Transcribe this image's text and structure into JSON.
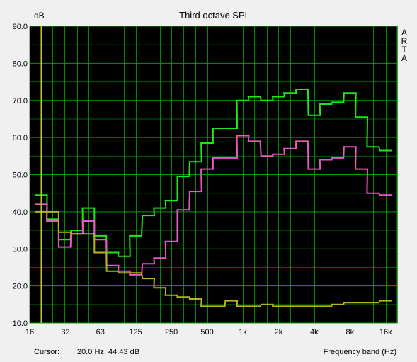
{
  "chart_data": {
    "type": "line",
    "step": true,
    "title": "Third octave SPL",
    "ylabel": "dB",
    "xlabel": "Frequency band (Hz)",
    "side_label": [
      "A",
      "R",
      "T",
      "A"
    ],
    "cursor_label": "Cursor:",
    "cursor_value": "20.0 Hz, 44.43 dB",
    "cursor_x": 20,
    "x_scale": "log",
    "xlim": [
      16,
      20000
    ],
    "ylim": [
      10,
      90
    ],
    "yticks": [
      {
        "value": 10,
        "label": "10.0"
      },
      {
        "value": 20,
        "label": "20.0"
      },
      {
        "value": 30,
        "label": "30.0"
      },
      {
        "value": 40,
        "label": "40.0"
      },
      {
        "value": 50,
        "label": "50.0"
      },
      {
        "value": 60,
        "label": "60.0"
      },
      {
        "value": 70,
        "label": "70.0"
      },
      {
        "value": 80,
        "label": "80.0"
      },
      {
        "value": 90,
        "label": "90.0"
      }
    ],
    "xticks": [
      {
        "value": 16,
        "label": "16"
      },
      {
        "value": 32,
        "label": "32"
      },
      {
        "value": 63,
        "label": "63"
      },
      {
        "value": 125,
        "label": "125"
      },
      {
        "value": 250,
        "label": "250"
      },
      {
        "value": 500,
        "label": "500"
      },
      {
        "value": 1000,
        "label": "1k"
      },
      {
        "value": 2000,
        "label": "2k"
      },
      {
        "value": 4000,
        "label": "4k"
      },
      {
        "value": 8000,
        "label": "8k"
      },
      {
        "value": 16000,
        "label": "16k"
      }
    ],
    "bands": [
      20,
      25,
      31.5,
      40,
      50,
      63,
      80,
      100,
      125,
      160,
      200,
      250,
      315,
      400,
      500,
      630,
      800,
      1000,
      1250,
      1600,
      2000,
      2500,
      3150,
      4000,
      5000,
      6300,
      8000,
      10000,
      12500,
      16000
    ],
    "series": [
      {
        "color": "#1ee61e",
        "values": [
          44.5,
          38,
          32.5,
          35,
          41,
          33.5,
          29,
          28,
          33.5,
          39,
          41,
          43,
          49.5,
          53.5,
          58.5,
          62.5,
          62.5,
          70,
          71,
          70,
          71,
          72,
          73,
          66,
          69,
          69.5,
          72,
          65.5,
          57.5,
          56.5
        ]
      },
      {
        "color": "#ee55c8",
        "values": [
          42,
          37.5,
          30.5,
          34,
          37.5,
          32.5,
          25.5,
          24,
          23,
          26,
          27.5,
          32,
          40.5,
          45.5,
          51.5,
          54.5,
          54.5,
          60.5,
          59,
          55,
          55.5,
          57,
          59,
          51.5,
          54,
          54.5,
          57.5,
          51.5,
          45,
          44.5
        ]
      },
      {
        "color": "#b4b41e",
        "values": [
          40,
          40,
          34.5,
          34,
          34,
          29,
          24,
          23.5,
          23.5,
          22,
          19.5,
          17.5,
          17,
          16.5,
          14.5,
          14.5,
          16,
          14.5,
          14.5,
          15,
          14.5,
          14.5,
          14.5,
          14.5,
          14.5,
          15,
          15.5,
          15.5,
          15.5,
          16
        ]
      }
    ],
    "grid": true,
    "background": "#000000",
    "grid_color": "#00aa00"
  }
}
